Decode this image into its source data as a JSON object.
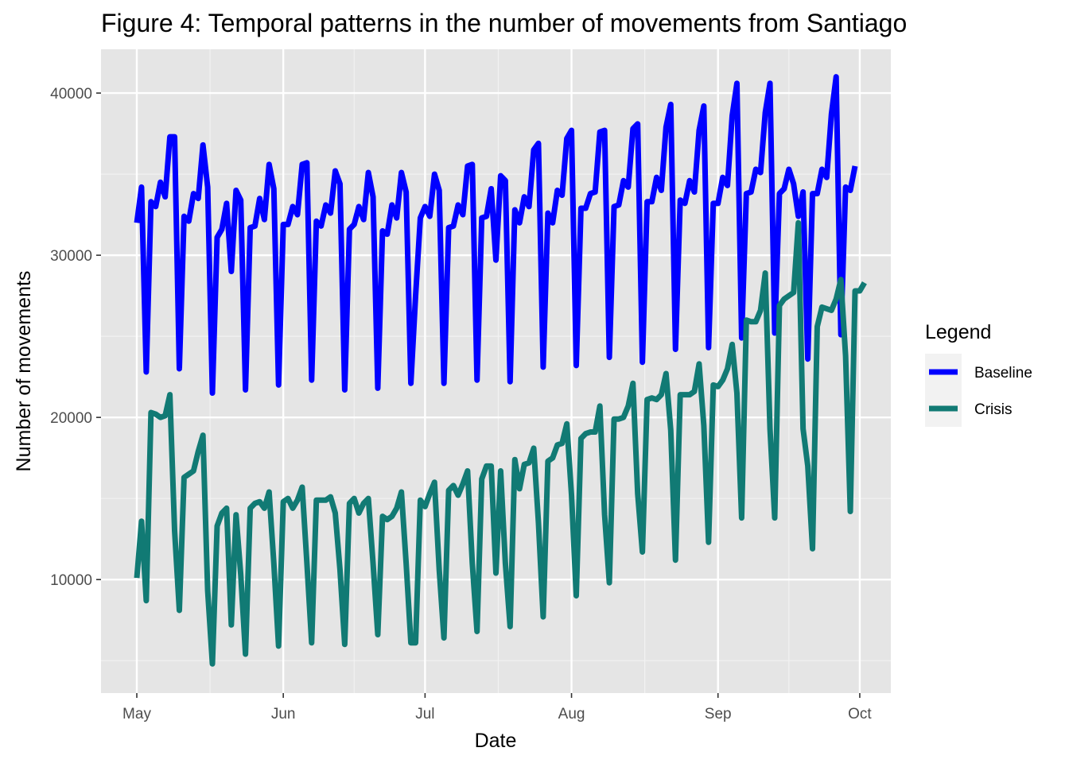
{
  "chart_data": {
    "type": "line",
    "title": "Figure 4: Temporal patterns in the number of movements from Santiago",
    "xlabel": "Date",
    "ylabel": "Number of movements",
    "x_range": [
      "2020-05-01",
      "2020-09-30"
    ],
    "ylim": [
      3000,
      42700
    ],
    "x_ticks": [
      {
        "date": "2020-05-01",
        "label": "May"
      },
      {
        "date": "2020-06-01",
        "label": "Jun"
      },
      {
        "date": "2020-07-01",
        "label": "Jul"
      },
      {
        "date": "2020-08-01",
        "label": "Aug"
      },
      {
        "date": "2020-09-01",
        "label": "Sep"
      },
      {
        "date": "2020-10-01",
        "label": "Oct"
      }
    ],
    "y_ticks": [
      10000,
      20000,
      30000,
      40000
    ],
    "grid": true,
    "legend": {
      "title": "Legend",
      "position": "right"
    },
    "series": [
      {
        "name": "Baseline",
        "color": "#0000ff",
        "start_date": "2020-05-01",
        "values": [
          32000,
          34200,
          22800,
          33300,
          33000,
          34500,
          33600,
          37300,
          37300,
          23000,
          32400,
          32100,
          33800,
          33500,
          36800,
          34200,
          21500,
          31100,
          31600,
          33200,
          29000,
          34000,
          33400,
          21700,
          31700,
          31800,
          33500,
          32200,
          35600,
          34100,
          22000,
          31900,
          31900,
          33000,
          32500,
          35600,
          35700,
          22300,
          32100,
          31800,
          33100,
          32600,
          35200,
          34400,
          21700,
          31600,
          31900,
          33000,
          32200,
          35100,
          33600,
          21800,
          31500,
          31300,
          33100,
          32300,
          35100,
          33900,
          22100,
          27500,
          32300,
          33000,
          32400,
          35000,
          34000,
          22100,
          31700,
          31800,
          33100,
          32500,
          35500,
          35600,
          22300,
          32300,
          32400,
          34100,
          29700,
          34900,
          34600,
          22200,
          32800,
          32000,
          33600,
          33000,
          36500,
          36900,
          23100,
          32600,
          32000,
          34000,
          33700,
          37200,
          37700,
          23200,
          32900,
          32900,
          33800,
          33900,
          37600,
          37700,
          23700,
          33000,
          33100,
          34600,
          34200,
          37800,
          38100,
          23400,
          33300,
          33300,
          34800,
          34000,
          37900,
          39300,
          24200,
          33400,
          33200,
          34600,
          33900,
          37700,
          39200,
          24300,
          33200,
          33200,
          34800,
          34300,
          38600,
          40600,
          24900,
          33800,
          33900,
          35300,
          35100,
          38800,
          40600,
          25200,
          33800,
          34100,
          35300,
          34400,
          32400,
          33900,
          23600,
          33800,
          33800,
          35300,
          34800,
          38700,
          41000,
          25100,
          34200,
          34000,
          35500
        ]
      },
      {
        "name": "Crisis",
        "color": "#117a74",
        "start_date": "2020-05-01",
        "values": [
          10100,
          13600,
          8700,
          20300,
          20200,
          20000,
          20100,
          21400,
          13000,
          8100,
          16300,
          16500,
          16700,
          17900,
          18900,
          9300,
          4800,
          13300,
          14100,
          14400,
          7200,
          14000,
          10300,
          5400,
          14400,
          14700,
          14800,
          14400,
          15400,
          11000,
          5900,
          14800,
          15000,
          14400,
          14900,
          15700,
          11000,
          6100,
          14900,
          14900,
          14900,
          15100,
          14100,
          10600,
          6000,
          14700,
          15000,
          14100,
          14700,
          15000,
          11000,
          6600,
          13900,
          13700,
          13900,
          14400,
          15400,
          11000,
          6100,
          6100,
          14900,
          14500,
          15300,
          16000,
          10600,
          6400,
          15500,
          15800,
          15200,
          15900,
          16700,
          11000,
          6800,
          16200,
          17000,
          17000,
          10400,
          16700,
          11000,
          7100,
          17400,
          15600,
          17100,
          17200,
          18100,
          13500,
          7700,
          17300,
          17500,
          18300,
          18400,
          19600,
          15200,
          9000,
          18700,
          19000,
          19100,
          19100,
          20700,
          14000,
          9800,
          19900,
          19900,
          20000,
          20700,
          22100,
          15300,
          11700,
          21100,
          21200,
          21100,
          21400,
          22700,
          19200,
          11200,
          21400,
          21400,
          21400,
          21600,
          23300,
          19500,
          12300,
          22000,
          21900,
          22300,
          23000,
          24500,
          21500,
          13800,
          26000,
          25900,
          25900,
          26600,
          28900,
          19300,
          13800,
          26900,
          27300,
          27500,
          27700,
          32000,
          19300,
          17000,
          11900,
          25600,
          26800,
          26700,
          26600,
          27300,
          28500,
          23800,
          14200,
          27800,
          27800,
          28300
        ]
      }
    ]
  }
}
